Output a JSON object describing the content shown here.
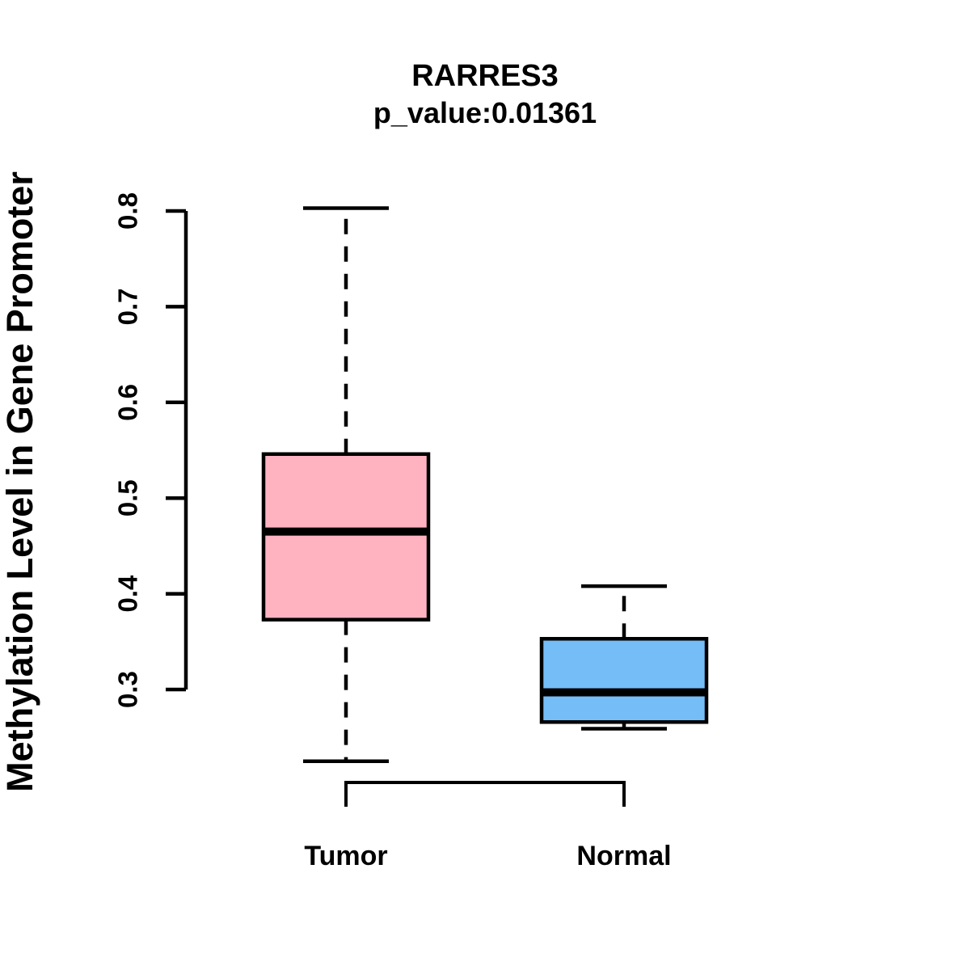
{
  "title": "RARRES3",
  "subtitle": "p_value:0.01361",
  "y_axis_label": "Methylation Level in Gene Promoter",
  "chart_data": {
    "type": "boxplot",
    "title": "RARRES3",
    "subtitle": "p_value:0.01361",
    "xlabel": "",
    "ylabel": "Methylation Level in Gene Promoter",
    "categories": [
      "Tumor",
      "Normal"
    ],
    "yticks": [
      0.3,
      0.4,
      0.5,
      0.6,
      0.7,
      0.8
    ],
    "axis_range": [
      0.3,
      0.8
    ],
    "grid": false,
    "legend": "none",
    "background_color": "#FFFFFF",
    "line_color": "#000000",
    "series": [
      {
        "name": "Tumor",
        "fill_color": "#FFB3C1",
        "whisker_low": 0.225,
        "q1": 0.373,
        "median": 0.465,
        "q3": 0.546,
        "whisker_high": 0.803
      },
      {
        "name": "Normal",
        "fill_color": "#74BDF7",
        "whisker_low": 0.259,
        "q1": 0.266,
        "median": 0.297,
        "q3": 0.353,
        "whisker_high": 0.408
      }
    ],
    "comparison_bracket": {
      "from": "Tumor",
      "to": "Normal"
    }
  }
}
